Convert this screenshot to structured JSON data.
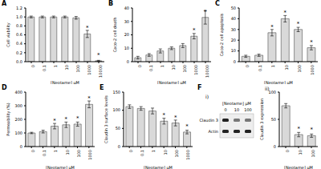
{
  "chart_data": [
    {
      "type": "bar",
      "panel_label": "A",
      "y_label": "Cell viability",
      "x_label": "[Neotame] µM",
      "categories": [
        "0",
        "0.1",
        "1",
        "10",
        "100",
        "1000",
        "10000"
      ],
      "values": [
        1.0,
        1.0,
        1.0,
        1.0,
        0.98,
        0.62,
        0.02
      ],
      "errors": [
        0.02,
        0.02,
        0.02,
        0.02,
        0.03,
        0.08,
        0.01
      ],
      "annotations": [
        {
          "category": "1000",
          "text": "*"
        },
        {
          "category": "10000",
          "text": "*"
        }
      ],
      "color": "#d9d9d9",
      "ylim": [
        0,
        1.2
      ],
      "yticks": [
        {
          "value": 0,
          "label": "0.0"
        },
        {
          "value": 0.2,
          "label": "0.2"
        },
        {
          "value": 0.4,
          "label": "0.4"
        },
        {
          "value": 0.6,
          "label": "0.6"
        },
        {
          "value": 0.8,
          "label": "0.8"
        },
        {
          "value": 1,
          "label": "1.0"
        },
        {
          "value": 1.2,
          "label": "1.2"
        }
      ]
    },
    {
      "type": "bar",
      "panel_label": "B",
      "y_label": "Caco-2 cell death",
      "x_label": "[Neotame] µM",
      "categories": [
        "0",
        "0.1",
        "1",
        "10",
        "100",
        "1000",
        "10000"
      ],
      "values": [
        3,
        5,
        8,
        10,
        12,
        19,
        33
      ],
      "errors": [
        1,
        1,
        1.5,
        1,
        1.5,
        2,
        5
      ],
      "annotations": [
        {
          "category": "1000",
          "text": "*"
        },
        {
          "category": "10000",
          "text": "*"
        }
      ],
      "color": "#d9d9d9",
      "ylim": [
        0,
        40
      ],
      "yticks": [
        0,
        10,
        20,
        30,
        40
      ]
    },
    {
      "type": "bar",
      "panel_label": "C",
      "y_label": "Caco-2 cell apoptosis",
      "x_label": "[Neotame] µM",
      "categories": [
        "0",
        "0.1",
        "1",
        "10",
        "100",
        "1000"
      ],
      "values": [
        5,
        6,
        27,
        40,
        30,
        13
      ],
      "errors": [
        1,
        1,
        3,
        3,
        2,
        2
      ],
      "annotations": [
        {
          "category": "1",
          "text": "*"
        },
        {
          "category": "10",
          "text": "*"
        },
        {
          "category": "100",
          "text": "*"
        },
        {
          "category": "1000",
          "text": "*"
        }
      ],
      "color": "#d9d9d9",
      "ylim": [
        0,
        50
      ],
      "yticks": [
        0,
        10,
        20,
        30,
        40,
        50
      ]
    },
    {
      "type": "bar",
      "panel_label": "D",
      "y_label": "Permeability (%)",
      "x_label": "[Neotame] µM",
      "categories": [
        "0",
        "0.1",
        "1",
        "10",
        "100",
        "1000"
      ],
      "values": [
        100,
        110,
        150,
        160,
        165,
        310
      ],
      "errors": [
        5,
        10,
        20,
        20,
        15,
        25
      ],
      "annotations": [
        {
          "category": "1",
          "text": "*"
        },
        {
          "category": "10",
          "text": "*"
        },
        {
          "category": "100",
          "text": "*"
        },
        {
          "category": "1000",
          "text": "*"
        }
      ],
      "color": "#d9d9d9",
      "ylim": [
        0,
        400
      ],
      "yticks": [
        0,
        100,
        200,
        300,
        400
      ]
    },
    {
      "type": "bar",
      "panel_label": "E",
      "y_label": "Claudin 3 surface levels",
      "x_label": "[Neotame] µM",
      "categories": [
        "0",
        "0.1",
        "1",
        "10",
        "100",
        "1000"
      ],
      "values": [
        110,
        105,
        98,
        70,
        65,
        40
      ],
      "errors": [
        5,
        5,
        8,
        8,
        8,
        5
      ],
      "annotations": [
        {
          "category": "10",
          "text": "*"
        },
        {
          "category": "100",
          "text": "*"
        },
        {
          "category": "1000",
          "text": "*"
        }
      ],
      "color": "#d9d9d9",
      "ylim": [
        0,
        150
      ],
      "yticks": [
        0,
        50,
        100,
        150
      ]
    },
    {
      "type": "blot",
      "panel_label": "F",
      "sublabel": "i)",
      "x_label": "[Neotame] µM",
      "lanes": [
        "0",
        "10",
        "100"
      ],
      "bands": [
        "Claudin 3",
        "Actin"
      ]
    },
    {
      "type": "bar",
      "sublabel": "ii)",
      "y_label": "Claudin 3 expression",
      "x_label": "[Neotame] µM",
      "categories": [
        "0",
        "10",
        "100"
      ],
      "values": [
        75,
        22,
        20
      ],
      "errors": [
        4,
        4,
        3
      ],
      "annotations": [
        {
          "category": "10",
          "text": "*"
        },
        {
          "category": "100",
          "text": "*"
        }
      ],
      "color": "#d9d9d9",
      "ylim": [
        0,
        100
      ],
      "yticks": [
        0,
        50,
        100
      ]
    }
  ]
}
